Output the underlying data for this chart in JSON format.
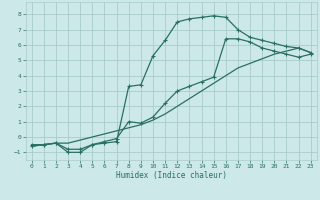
{
  "xlabel": "Humidex (Indice chaleur)",
  "bg_color": "#cce8e8",
  "grid_color": "#aacccc",
  "line_color": "#2a7060",
  "xlim": [
    -0.5,
    23.5
  ],
  "ylim": [
    -1.5,
    8.8
  ],
  "xticks": [
    0,
    1,
    2,
    3,
    4,
    5,
    6,
    7,
    8,
    9,
    10,
    11,
    12,
    13,
    14,
    15,
    16,
    17,
    18,
    19,
    20,
    21,
    22,
    23
  ],
  "yticks": [
    -1,
    0,
    1,
    2,
    3,
    4,
    5,
    6,
    7,
    8
  ],
  "line1_x": [
    0,
    1,
    2,
    3,
    4,
    5,
    6,
    7,
    8,
    9,
    10,
    11,
    12,
    13,
    14,
    15,
    16,
    17,
    18,
    19,
    20,
    21,
    22,
    23
  ],
  "line1_y": [
    -0.5,
    -0.5,
    -0.4,
    -0.8,
    -0.8,
    -0.5,
    -0.4,
    -0.3,
    3.3,
    3.4,
    5.3,
    6.3,
    7.5,
    7.7,
    7.8,
    7.9,
    7.8,
    7.0,
    6.5,
    6.3,
    6.1,
    5.9,
    5.8,
    5.5
  ],
  "line2_x": [
    0,
    1,
    2,
    3,
    4,
    5,
    6,
    7,
    8,
    9,
    10,
    11,
    12,
    13,
    14,
    15,
    16,
    17,
    18,
    19,
    20,
    21,
    22,
    23
  ],
  "line2_y": [
    -0.6,
    -0.5,
    -0.4,
    -0.4,
    -0.2,
    0.0,
    0.2,
    0.4,
    0.6,
    0.8,
    1.1,
    1.5,
    2.0,
    2.5,
    3.0,
    3.5,
    4.0,
    4.5,
    4.8,
    5.1,
    5.4,
    5.6,
    5.8,
    5.5
  ],
  "line3_x": [
    0,
    1,
    2,
    3,
    4,
    5,
    6,
    7,
    8,
    9,
    10,
    11,
    12,
    13,
    14,
    15,
    16,
    17,
    18,
    19,
    20,
    21,
    22,
    23
  ],
  "line3_y": [
    -0.6,
    -0.5,
    -0.4,
    -1.0,
    -1.0,
    -0.5,
    -0.3,
    -0.1,
    1.0,
    0.9,
    1.3,
    2.2,
    3.0,
    3.3,
    3.6,
    3.9,
    6.4,
    6.4,
    6.2,
    5.8,
    5.6,
    5.4,
    5.2,
    5.4
  ]
}
